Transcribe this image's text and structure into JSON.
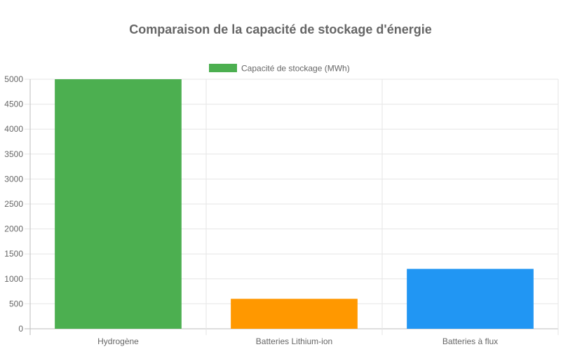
{
  "chart_data": {
    "type": "bar",
    "title": "Comparaison de la capacité de stockage d'énergie",
    "categories": [
      "Hydrogène",
      "Batteries Lithium-ion",
      "Batteries à flux"
    ],
    "series": [
      {
        "name": "Capacité de stockage (MWh)",
        "values": [
          5000,
          600,
          1200
        ],
        "colors": [
          "#4caf50",
          "#ff9800",
          "#2196f3"
        ]
      }
    ],
    "ylim": [
      0,
      5000
    ],
    "yticks": [
      0,
      500,
      1000,
      1500,
      2000,
      2500,
      3000,
      3500,
      4000,
      4500,
      5000
    ],
    "grid": true,
    "legend_position": "top-center"
  }
}
